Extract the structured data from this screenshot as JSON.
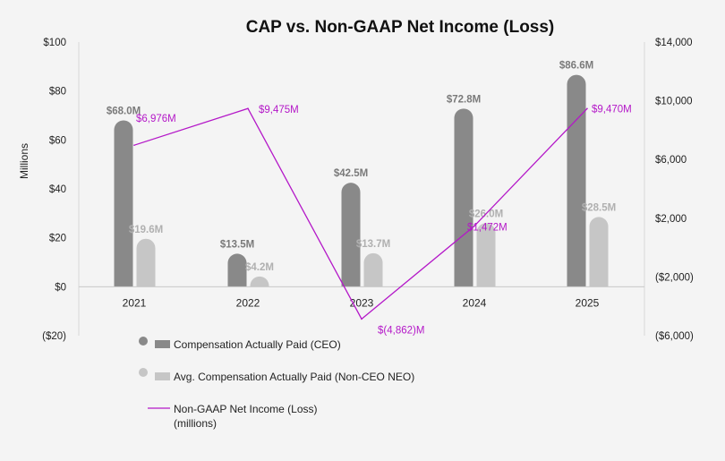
{
  "chart_data": {
    "type": "bar",
    "title": "CAP vs. Non-GAAP Net Income (Loss)",
    "ylabel": "Millions",
    "categories": [
      "2021",
      "2022",
      "2023",
      "2024",
      "2025"
    ],
    "ylim": [
      -20,
      100
    ],
    "yticks": [
      "($20)",
      "$0",
      "$20",
      "$40",
      "$60",
      "$80",
      "$100"
    ],
    "y2lim": [
      -6000,
      14000
    ],
    "y2ticks": [
      "($6,000)",
      "($2,000)",
      "$2,000",
      "$6,000",
      "$10,000",
      "$14,000"
    ],
    "series": [
      {
        "name": "Compensation Actually Paid (CEO)",
        "kind": "bar",
        "axis": "left",
        "color": "#898989",
        "label_color": "#7a7a7a",
        "values": [
          68.0,
          13.5,
          42.5,
          72.8,
          86.6
        ],
        "labels": [
          "$68.0M",
          "$13.5M",
          "$42.5M",
          "$72.8M",
          "$86.6M"
        ]
      },
      {
        "name": "Avg. Compensation Actually Paid (Non-CEO NEO)",
        "kind": "bar",
        "axis": "left",
        "color": "#c6c6c6",
        "label_color": "#b0b0b0",
        "values": [
          19.6,
          4.2,
          13.7,
          26.0,
          28.5
        ],
        "labels": [
          "$19.6M",
          "$4.2M",
          "$13.7M",
          "$26.0M",
          "$28.5M"
        ]
      },
      {
        "name": "Non-GAAP Net Income (Loss)",
        "name_line2": "(millions)",
        "kind": "line",
        "axis": "right",
        "color": "#b418c8",
        "values": [
          6976,
          9475,
          -4862,
          1472,
          9470
        ],
        "labels": [
          "$6,976M",
          "$9,475M",
          "$(4,862)M",
          "$1,472M",
          "$9,470M"
        ]
      }
    ],
    "legend_position": "bottom-left"
  }
}
